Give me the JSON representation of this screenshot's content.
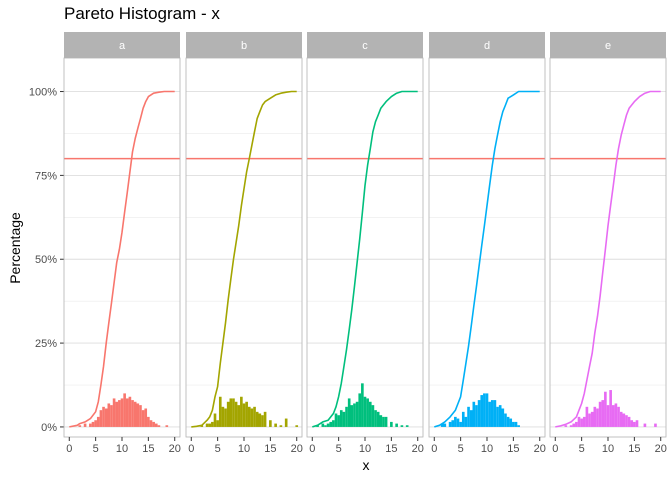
{
  "chart_data": {
    "type": "bar",
    "title": "Pareto Histogram - x",
    "xlabel": "x",
    "ylabel": "Percentage",
    "xlim": [
      -1,
      21
    ],
    "ylim": [
      -0.03,
      1.1
    ],
    "x_ticks": [
      0,
      5,
      10,
      15,
      20
    ],
    "y_ticks": [
      0,
      0.25,
      0.5,
      0.75,
      1.0
    ],
    "y_tick_labels": [
      "0%",
      "25%",
      "50%",
      "75%",
      "100%"
    ],
    "reference_line": 0.8,
    "reference_line_color": "#F8766D",
    "grid": true,
    "bin_width": 0.5,
    "facets": [
      {
        "name": "a",
        "color": "#F8766D",
        "hist": [
          [
            2,
            0.005
          ],
          [
            3,
            0.01
          ],
          [
            4,
            0.01
          ],
          [
            4.5,
            0.015
          ],
          [
            5,
            0.02
          ],
          [
            5.5,
            0.03
          ],
          [
            6,
            0.05
          ],
          [
            6.5,
            0.06
          ],
          [
            7,
            0.055
          ],
          [
            7.5,
            0.07
          ],
          [
            8,
            0.065
          ],
          [
            8.5,
            0.085
          ],
          [
            9,
            0.075
          ],
          [
            9.5,
            0.08
          ],
          [
            10,
            0.085
          ],
          [
            10.5,
            0.1
          ],
          [
            11,
            0.085
          ],
          [
            11.5,
            0.09
          ],
          [
            12,
            0.08
          ],
          [
            12.5,
            0.075
          ],
          [
            13,
            0.07
          ],
          [
            13.5,
            0.065
          ],
          [
            14,
            0.05
          ],
          [
            14.5,
            0.055
          ],
          [
            15,
            0.03
          ],
          [
            15.5,
            0.02
          ],
          [
            16,
            0.015
          ],
          [
            16.5,
            0.01
          ],
          [
            17,
            0.005
          ],
          [
            18.5,
            0.005
          ]
        ],
        "cumulative": [
          [
            0,
            0
          ],
          [
            1.5,
            0.005
          ],
          [
            2,
            0.01
          ],
          [
            3,
            0.015
          ],
          [
            4,
            0.025
          ],
          [
            5,
            0.045
          ],
          [
            5.5,
            0.075
          ],
          [
            6,
            0.125
          ],
          [
            6.5,
            0.18
          ],
          [
            7,
            0.25
          ],
          [
            7.5,
            0.31
          ],
          [
            8,
            0.37
          ],
          [
            8.5,
            0.43
          ],
          [
            9,
            0.49
          ],
          [
            9.5,
            0.53
          ],
          [
            10,
            0.58
          ],
          [
            10.5,
            0.64
          ],
          [
            11,
            0.7
          ],
          [
            11.5,
            0.76
          ],
          [
            12,
            0.82
          ],
          [
            12.5,
            0.86
          ],
          [
            13,
            0.89
          ],
          [
            13.5,
            0.92
          ],
          [
            14,
            0.95
          ],
          [
            14.5,
            0.97
          ],
          [
            15,
            0.985
          ],
          [
            16,
            0.995
          ],
          [
            17,
            0.998
          ],
          [
            18,
            1.0
          ],
          [
            20,
            1.0
          ]
        ]
      },
      {
        "name": "b",
        "color": "#A3A500",
        "hist": [
          [
            2,
            0.005
          ],
          [
            3,
            0.01
          ],
          [
            3.5,
            0.01
          ],
          [
            4,
            0.015
          ],
          [
            4.5,
            0.04
          ],
          [
            5,
            0.02
          ],
          [
            5.5,
            0.09
          ],
          [
            6,
            0.06
          ],
          [
            6.5,
            0.055
          ],
          [
            7,
            0.075
          ],
          [
            7.5,
            0.085
          ],
          [
            8,
            0.085
          ],
          [
            8.5,
            0.075
          ],
          [
            9,
            0.065
          ],
          [
            9.5,
            0.09
          ],
          [
            10,
            0.07
          ],
          [
            10.5,
            0.075
          ],
          [
            11,
            0.06
          ],
          [
            11.5,
            0.055
          ],
          [
            12,
            0.06
          ],
          [
            12.5,
            0.045
          ],
          [
            13,
            0.04
          ],
          [
            13.5,
            0.035
          ],
          [
            14,
            0.045
          ],
          [
            15,
            0.02
          ],
          [
            16,
            0.01
          ],
          [
            17,
            0.005
          ],
          [
            18,
            0.025
          ],
          [
            20,
            0.005
          ]
        ],
        "cumulative": [
          [
            0,
            0
          ],
          [
            1,
            0.002
          ],
          [
            2,
            0.005
          ],
          [
            3,
            0.02
          ],
          [
            3.5,
            0.03
          ],
          [
            4,
            0.05
          ],
          [
            4.5,
            0.09
          ],
          [
            5,
            0.12
          ],
          [
            5.5,
            0.19
          ],
          [
            6,
            0.25
          ],
          [
            6.5,
            0.31
          ],
          [
            7,
            0.38
          ],
          [
            7.5,
            0.44
          ],
          [
            8,
            0.5
          ],
          [
            8.5,
            0.55
          ],
          [
            9,
            0.6
          ],
          [
            9.5,
            0.66
          ],
          [
            10,
            0.71
          ],
          [
            10.5,
            0.76
          ],
          [
            11,
            0.8
          ],
          [
            11.5,
            0.84
          ],
          [
            12,
            0.88
          ],
          [
            12.5,
            0.92
          ],
          [
            13,
            0.94
          ],
          [
            13.5,
            0.96
          ],
          [
            14,
            0.97
          ],
          [
            15,
            0.98
          ],
          [
            16,
            0.99
          ],
          [
            17,
            0.995
          ],
          [
            18,
            0.998
          ],
          [
            19,
            1.0
          ],
          [
            20,
            1.0
          ]
        ]
      },
      {
        "name": "c",
        "color": "#00BF7D",
        "hist": [
          [
            1,
            0.005
          ],
          [
            2,
            0.01
          ],
          [
            2.5,
            0.005
          ],
          [
            3,
            0.01
          ],
          [
            3.5,
            0.015
          ],
          [
            4,
            0.02
          ],
          [
            4.5,
            0.04
          ],
          [
            5,
            0.035
          ],
          [
            5.5,
            0.05
          ],
          [
            6,
            0.045
          ],
          [
            6.5,
            0.06
          ],
          [
            7,
            0.085
          ],
          [
            7.5,
            0.065
          ],
          [
            8,
            0.07
          ],
          [
            8.5,
            0.075
          ],
          [
            9,
            0.1
          ],
          [
            9.5,
            0.13
          ],
          [
            10,
            0.09
          ],
          [
            10.5,
            0.085
          ],
          [
            11,
            0.075
          ],
          [
            11.5,
            0.065
          ],
          [
            12,
            0.05
          ],
          [
            12.5,
            0.045
          ],
          [
            13,
            0.035
          ],
          [
            13.5,
            0.03
          ],
          [
            14,
            0.03
          ],
          [
            15,
            0.015
          ],
          [
            16,
            0.01
          ],
          [
            17,
            0.005
          ],
          [
            18,
            0.005
          ]
        ],
        "cumulative": [
          [
            0,
            0
          ],
          [
            1,
            0.005
          ],
          [
            2,
            0.015
          ],
          [
            3,
            0.02
          ],
          [
            4,
            0.04
          ],
          [
            4.5,
            0.06
          ],
          [
            5,
            0.09
          ],
          [
            5.5,
            0.13
          ],
          [
            6,
            0.18
          ],
          [
            6.5,
            0.23
          ],
          [
            7,
            0.29
          ],
          [
            7.5,
            0.35
          ],
          [
            8,
            0.42
          ],
          [
            8.5,
            0.49
          ],
          [
            9,
            0.56
          ],
          [
            9.5,
            0.64
          ],
          [
            10,
            0.72
          ],
          [
            10.5,
            0.78
          ],
          [
            11,
            0.83
          ],
          [
            11.5,
            0.88
          ],
          [
            12,
            0.91
          ],
          [
            12.5,
            0.93
          ],
          [
            13,
            0.95
          ],
          [
            14,
            0.97
          ],
          [
            15,
            0.985
          ],
          [
            16,
            0.995
          ],
          [
            17,
            1.0
          ],
          [
            20,
            1.0
          ]
        ]
      },
      {
        "name": "d",
        "color": "#00B0F6",
        "hist": [
          [
            1.5,
            0.01
          ],
          [
            2,
            0.01
          ],
          [
            3,
            0.015
          ],
          [
            3.5,
            0.02
          ],
          [
            4,
            0.03
          ],
          [
            4.5,
            0.025
          ],
          [
            5,
            0.015
          ],
          [
            5.5,
            0.045
          ],
          [
            6,
            0.03
          ],
          [
            6.5,
            0.06
          ],
          [
            7,
            0.05
          ],
          [
            7.5,
            0.075
          ],
          [
            8,
            0.065
          ],
          [
            8.5,
            0.08
          ],
          [
            9,
            0.095
          ],
          [
            9.5,
            0.1
          ],
          [
            10,
            0.1
          ],
          [
            10.5,
            0.075
          ],
          [
            11,
            0.08
          ],
          [
            11.5,
            0.08
          ],
          [
            12,
            0.06
          ],
          [
            12.5,
            0.065
          ],
          [
            13,
            0.055
          ],
          [
            13.5,
            0.04
          ],
          [
            14,
            0.03
          ],
          [
            14.5,
            0.025
          ],
          [
            15,
            0.015
          ],
          [
            15.5,
            0.015
          ],
          [
            16,
            0.005
          ]
        ],
        "cumulative": [
          [
            0,
            0
          ],
          [
            1,
            0.005
          ],
          [
            2,
            0.015
          ],
          [
            3,
            0.03
          ],
          [
            4,
            0.05
          ],
          [
            4.5,
            0.07
          ],
          [
            5,
            0.09
          ],
          [
            5.5,
            0.14
          ],
          [
            6,
            0.19
          ],
          [
            6.5,
            0.24
          ],
          [
            7,
            0.3
          ],
          [
            7.5,
            0.36
          ],
          [
            8,
            0.42
          ],
          [
            8.5,
            0.48
          ],
          [
            9,
            0.54
          ],
          [
            9.5,
            0.6
          ],
          [
            10,
            0.66
          ],
          [
            10.5,
            0.72
          ],
          [
            11,
            0.78
          ],
          [
            11.5,
            0.83
          ],
          [
            12,
            0.87
          ],
          [
            12.5,
            0.91
          ],
          [
            13,
            0.94
          ],
          [
            13.5,
            0.96
          ],
          [
            14,
            0.98
          ],
          [
            15,
            0.99
          ],
          [
            16,
            1.0
          ],
          [
            20,
            1.0
          ]
        ]
      },
      {
        "name": "e",
        "color": "#E76BF3",
        "hist": [
          [
            2,
            0.005
          ],
          [
            3,
            0.005
          ],
          [
            3.5,
            0.01
          ],
          [
            4,
            0.015
          ],
          [
            4.5,
            0.03
          ],
          [
            5,
            0.025
          ],
          [
            5.5,
            0.03
          ],
          [
            6,
            0.06
          ],
          [
            6.5,
            0.04
          ],
          [
            7,
            0.045
          ],
          [
            7.5,
            0.06
          ],
          [
            8,
            0.055
          ],
          [
            8.5,
            0.075
          ],
          [
            9,
            0.08
          ],
          [
            9.5,
            0.105
          ],
          [
            10,
            0.065
          ],
          [
            10.5,
            0.11
          ],
          [
            11,
            0.065
          ],
          [
            11.5,
            0.07
          ],
          [
            12,
            0.06
          ],
          [
            12.5,
            0.045
          ],
          [
            13,
            0.04
          ],
          [
            13.5,
            0.035
          ],
          [
            14,
            0.03
          ],
          [
            14.5,
            0.02
          ],
          [
            15,
            0.015
          ],
          [
            15.5,
            0.02
          ],
          [
            17,
            0.01
          ],
          [
            19,
            0.01
          ]
        ],
        "cumulative": [
          [
            0,
            0
          ],
          [
            1,
            0.003
          ],
          [
            2,
            0.008
          ],
          [
            3,
            0.015
          ],
          [
            4,
            0.03
          ],
          [
            4.5,
            0.05
          ],
          [
            5,
            0.07
          ],
          [
            5.5,
            0.1
          ],
          [
            6,
            0.14
          ],
          [
            6.5,
            0.18
          ],
          [
            7,
            0.22
          ],
          [
            7.5,
            0.28
          ],
          [
            8,
            0.33
          ],
          [
            8.5,
            0.39
          ],
          [
            9,
            0.46
          ],
          [
            9.5,
            0.53
          ],
          [
            10,
            0.6
          ],
          [
            10.5,
            0.66
          ],
          [
            11,
            0.72
          ],
          [
            11.5,
            0.78
          ],
          [
            12,
            0.83
          ],
          [
            12.5,
            0.87
          ],
          [
            13,
            0.9
          ],
          [
            13.5,
            0.93
          ],
          [
            14,
            0.95
          ],
          [
            15,
            0.97
          ],
          [
            16,
            0.985
          ],
          [
            17,
            0.995
          ],
          [
            18,
            1.0
          ],
          [
            20,
            1.0
          ]
        ]
      }
    ]
  }
}
